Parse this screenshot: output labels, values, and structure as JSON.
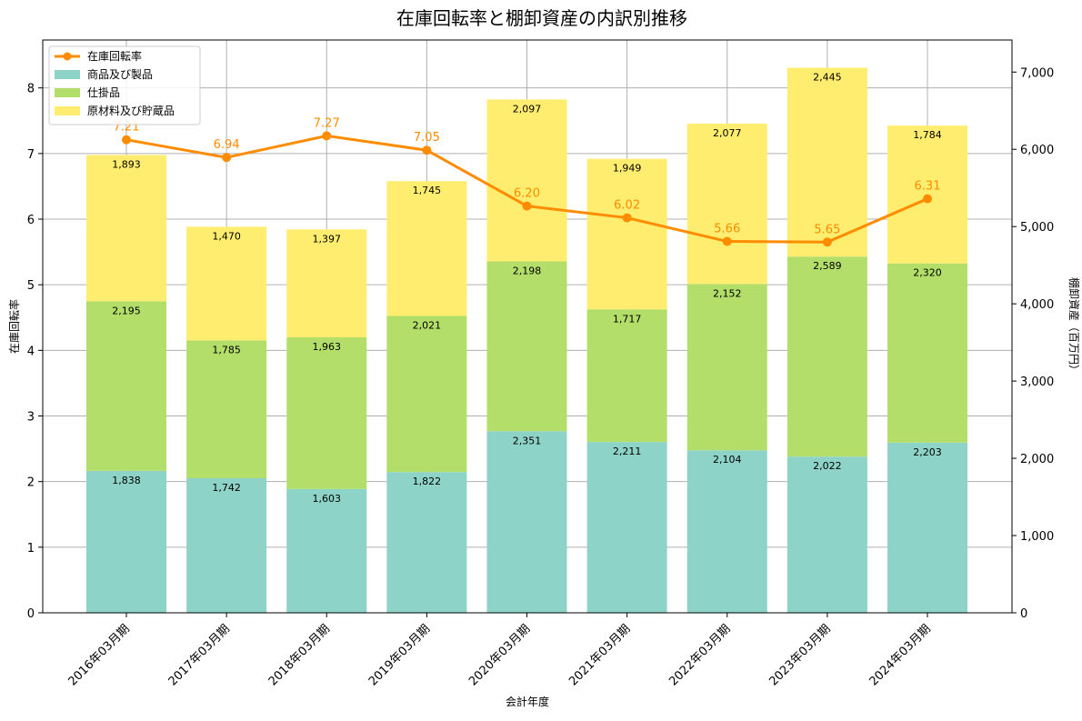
{
  "chart_data": {
    "type": "bar",
    "title": "在庫回転率と棚卸資産の内訳別推移",
    "xlabel": "会計年度",
    "ylabel_left": "在庫回転率",
    "ylabel_right": "棚卸資産（百万円）",
    "categories": [
      "2016年03月期",
      "2017年03月期",
      "2018年03月期",
      "2019年03月期",
      "2020年03月期",
      "2021年03月期",
      "2022年03月期",
      "2023年03月期",
      "2024年03月期"
    ],
    "stacked": true,
    "series": [
      {
        "name": "商品及び製品",
        "color": "#8ed3c7",
        "axis": "right",
        "values": [
          1838,
          1742,
          1603,
          1822,
          2351,
          2211,
          2104,
          2022,
          2203
        ]
      },
      {
        "name": "仕掛品",
        "color": "#b3de69",
        "axis": "right",
        "values": [
          2195,
          1785,
          1963,
          2021,
          2198,
          1717,
          2152,
          2589,
          2320
        ]
      },
      {
        "name": "原材料及び貯蔵品",
        "color": "#ffed6f",
        "axis": "right",
        "values": [
          1893,
          1470,
          1397,
          1745,
          2097,
          1949,
          2077,
          2445,
          1784
        ]
      }
    ],
    "line_series": {
      "name": "在庫回転率",
      "color": "#ff8c00",
      "axis": "left",
      "values": [
        7.21,
        6.94,
        7.27,
        7.05,
        6.2,
        6.02,
        5.66,
        5.65,
        6.31
      ],
      "labels": [
        "7.21",
        "6.94",
        "7.27",
        "7.05",
        "6.20",
        "6.02",
        "5.66",
        "5.65",
        "6.31"
      ]
    },
    "ylim_left": [
      0,
      8.73
    ],
    "ylim_right": [
      0,
      7415
    ],
    "yticks_left": [
      "0",
      "1",
      "2",
      "3",
      "4",
      "5",
      "6",
      "7",
      "8"
    ],
    "yticks_right": [
      "0",
      "1,000",
      "2,000",
      "3,000",
      "4,000",
      "5,000",
      "6,000",
      "7,000"
    ],
    "grid": true,
    "legend_position": "top-left"
  }
}
